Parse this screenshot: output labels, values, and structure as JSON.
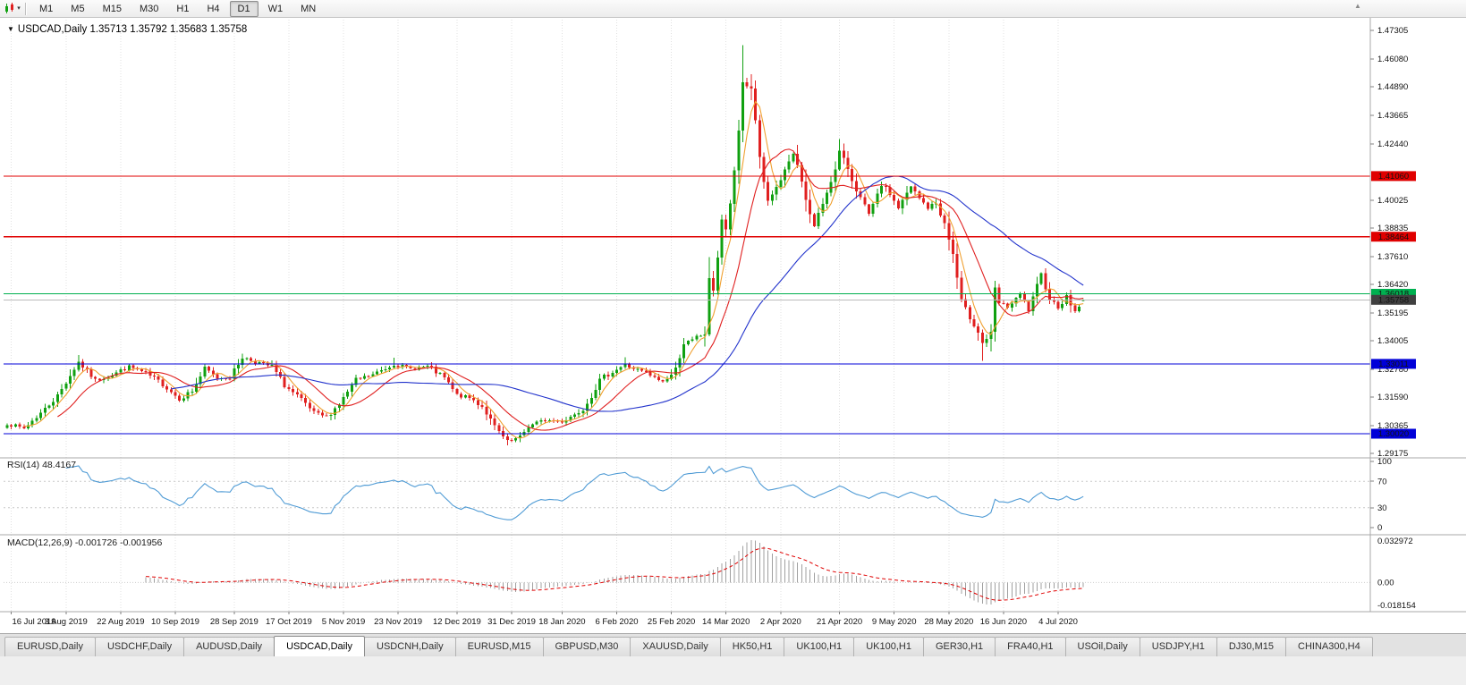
{
  "toolbar": {
    "timeframes": [
      "M1",
      "M5",
      "M15",
      "M30",
      "H1",
      "H4",
      "D1",
      "W1",
      "MN"
    ],
    "active_timeframe": "D1"
  },
  "chart_header": {
    "dropdown_icon": "▼",
    "symbol_period": "USDCAD,Daily",
    "ohlc_text": "1.35713 1.35792 1.35683 1.35758"
  },
  "chart_data": {
    "type": "candlestick",
    "title": "USDCAD,Daily",
    "ohlc_current": {
      "open": 1.35713,
      "high": 1.35792,
      "low": 1.35683,
      "close": 1.35758
    },
    "y_axis": {
      "labels": [
        "1.47305",
        "1.46080",
        "1.44890",
        "1.43665",
        "1.42440",
        "1.40025",
        "1.38835",
        "1.37610",
        "1.36420",
        "1.35195",
        "1.34005",
        "1.32780",
        "1.31590",
        "1.30365",
        "1.29175"
      ],
      "range": [
        1.29175,
        1.47305
      ]
    },
    "x_axis": {
      "labels": [
        "16 Jul 2019",
        "3 Aug 2019",
        "22 Aug 2019",
        "10 Sep 2019",
        "28 Sep 2019",
        "17 Oct 2019",
        "5 Nov 2019",
        "23 Nov 2019",
        "12 Dec 2019",
        "31 Dec 2019",
        "18 Jan 2020",
        "6 Feb 2020",
        "25 Feb 2020",
        "14 Mar 2020",
        "2 Apr 2020",
        "21 Apr 2020",
        "9 May 2020",
        "28 May 2020",
        "16 Jun 2020",
        "4 Jul 2020"
      ],
      "tick_days": [
        1,
        14,
        27,
        40,
        54,
        67,
        80,
        93,
        107,
        120,
        132,
        145,
        158,
        171,
        184,
        198,
        211,
        224,
        237,
        250
      ],
      "n_candles": 257
    },
    "price_anchors": [
      [
        0,
        1.3045
      ],
      [
        4,
        1.3025
      ],
      [
        8,
        1.309
      ],
      [
        12,
        1.3165
      ],
      [
        17,
        1.331
      ],
      [
        21,
        1.323
      ],
      [
        25,
        1.3255
      ],
      [
        29,
        1.329
      ],
      [
        33,
        1.326
      ],
      [
        37,
        1.3215
      ],
      [
        41,
        1.315
      ],
      [
        44,
        1.3185
      ],
      [
        47,
        1.328
      ],
      [
        50,
        1.324
      ],
      [
        53,
        1.3245
      ],
      [
        56,
        1.333
      ],
      [
        60,
        1.3305
      ],
      [
        63,
        1.329
      ],
      [
        66,
        1.321
      ],
      [
        70,
        1.3145
      ],
      [
        73,
        1.309
      ],
      [
        76,
        1.3075
      ],
      [
        79,
        1.313
      ],
      [
        83,
        1.323
      ],
      [
        87,
        1.3255
      ],
      [
        92,
        1.33
      ],
      [
        96,
        1.328
      ],
      [
        100,
        1.329
      ],
      [
        104,
        1.324
      ],
      [
        107,
        1.3165
      ],
      [
        110,
        1.3155
      ],
      [
        113,
        1.312
      ],
      [
        116,
        1.303
      ],
      [
        119,
        1.2965
      ],
      [
        122,
        1.2985
      ],
      [
        124,
        1.3035
      ],
      [
        128,
        1.306
      ],
      [
        132,
        1.3055
      ],
      [
        135,
        1.3085
      ],
      [
        137,
        1.311
      ],
      [
        139,
        1.3165
      ],
      [
        141,
        1.323
      ],
      [
        144,
        1.327
      ],
      [
        147,
        1.3295
      ],
      [
        150,
        1.3275
      ],
      [
        152,
        1.326
      ],
      [
        154,
        1.324
      ],
      [
        156,
        1.3225
      ],
      [
        158,
        1.3255
      ],
      [
        159,
        1.328
      ],
      [
        161,
        1.339
      ],
      [
        163,
        1.34
      ],
      [
        164,
        1.3415
      ],
      [
        166,
        1.343
      ],
      [
        167,
        1.366
      ],
      [
        168,
        1.362
      ],
      [
        169,
        1.376
      ],
      [
        170,
        1.392
      ],
      [
        171,
        1.387
      ],
      [
        172,
        1.399
      ],
      [
        173,
        1.412
      ],
      [
        174,
        1.43
      ],
      [
        175,
        1.451
      ],
      [
        176,
        1.4495
      ],
      [
        177,
        1.448
      ],
      [
        178,
        1.435
      ],
      [
        179,
        1.418
      ],
      [
        180,
        1.408
      ],
      [
        181,
        1.399
      ],
      [
        182,
        1.402
      ],
      [
        183,
        1.406
      ],
      [
        184,
        1.409
      ],
      [
        185,
        1.413
      ],
      [
        186,
        1.416
      ],
      [
        187,
        1.42
      ],
      [
        188,
        1.415
      ],
      [
        189,
        1.409
      ],
      [
        190,
        1.4
      ],
      [
        192,
        1.389
      ],
      [
        194,
        1.399
      ],
      [
        195,
        1.404
      ],
      [
        196,
        1.409
      ],
      [
        197,
        1.413
      ],
      [
        198,
        1.421
      ],
      [
        200,
        1.414
      ],
      [
        201,
        1.409
      ],
      [
        203,
        1.401
      ],
      [
        205,
        1.394
      ],
      [
        207,
        1.402
      ],
      [
        208,
        1.407
      ],
      [
        210,
        1.403
      ],
      [
        212,
        1.397
      ],
      [
        214,
        1.403
      ],
      [
        215,
        1.406
      ],
      [
        217,
        1.401
      ],
      [
        219,
        1.397
      ],
      [
        221,
        1.399
      ],
      [
        223,
        1.39
      ],
      [
        225,
        1.377
      ],
      [
        227,
        1.357
      ],
      [
        229,
        1.35
      ],
      [
        231,
        1.344
      ],
      [
        232,
        1.339
      ],
      [
        234,
        1.343
      ],
      [
        235,
        1.362
      ],
      [
        236,
        1.356
      ],
      [
        238,
        1.3545
      ],
      [
        240,
        1.3575
      ],
      [
        241,
        1.36
      ],
      [
        243,
        1.353
      ],
      [
        246,
        1.3685
      ],
      [
        248,
        1.358
      ],
      [
        250,
        1.3545
      ],
      [
        252,
        1.359
      ],
      [
        254,
        1.3525
      ],
      [
        256,
        1.35758
      ]
    ],
    "extremes": {
      "17": {
        "high": 1.334
      },
      "56": {
        "high": 1.3345
      },
      "92": {
        "high": 1.3328
      },
      "119": {
        "low": 1.2952
      },
      "147": {
        "high": 1.333
      },
      "167": {
        "low": 1.342,
        "high": 1.3758
      },
      "175": {
        "high": 1.4668
      },
      "198": {
        "high": 1.4265
      },
      "232": {
        "low": 1.3315
      }
    },
    "horizontal_lines": [
      {
        "value": 1.4106,
        "label": "1.41060",
        "color": "#e00000"
      },
      {
        "value": 1.38464,
        "label": "1.38464",
        "color": "#e00000"
      },
      {
        "value": 1.36018,
        "label": "1.36018",
        "color": "#00b050"
      },
      {
        "value": 1.33011,
        "label": "1.33011",
        "color": "#0000d8"
      },
      {
        "value": 1.3002,
        "label": "1.30020",
        "color": "#0000d8"
      }
    ],
    "bid_line": {
      "value": 1.35758,
      "label": "1.35758",
      "color": "#404040"
    },
    "moving_averages": [
      {
        "period": 5,
        "color": "#f0a030"
      },
      {
        "period": 13,
        "color": "#e02020"
      },
      {
        "period": 40,
        "color": "#2233cc"
      }
    ],
    "candle_colors": {
      "up": "#10a010",
      "down": "#e02020"
    },
    "indicators": [
      {
        "name": "RSI",
        "title": "RSI(14) 48.4167",
        "period": 14,
        "current": 48.4167,
        "axis_labels": [
          "100",
          "70",
          "30",
          "0"
        ],
        "levels": [
          70,
          30
        ],
        "color": "#4f9bd5"
      },
      {
        "name": "MACD",
        "title": "MACD(12,26,9) -0.001726 -0.001956",
        "params": [
          12,
          26,
          9
        ],
        "current_macd": -0.001726,
        "current_signal": -0.001956,
        "axis_labels": [
          "0.032972",
          "0.00",
          "-0.018154"
        ],
        "histogram_color": "#a0a0a0",
        "signal_color": "#e00000"
      }
    ]
  },
  "bottom_tabs": {
    "active_index": 3,
    "items": [
      "EURUSD,Daily",
      "USDCHF,Daily",
      "AUDUSD,Daily",
      "USDCAD,Daily",
      "USDCNH,Daily",
      "EURUSD,M15",
      "GBPUSD,M30",
      "XAUUSD,Daily",
      "HK50,H1",
      "UK100,H1",
      "UK100,H1",
      "GER30,H1",
      "FRA40,H1",
      "USOil,Daily",
      "USDJPY,H1",
      "DJ30,M15",
      "CHINA300,H4"
    ]
  }
}
